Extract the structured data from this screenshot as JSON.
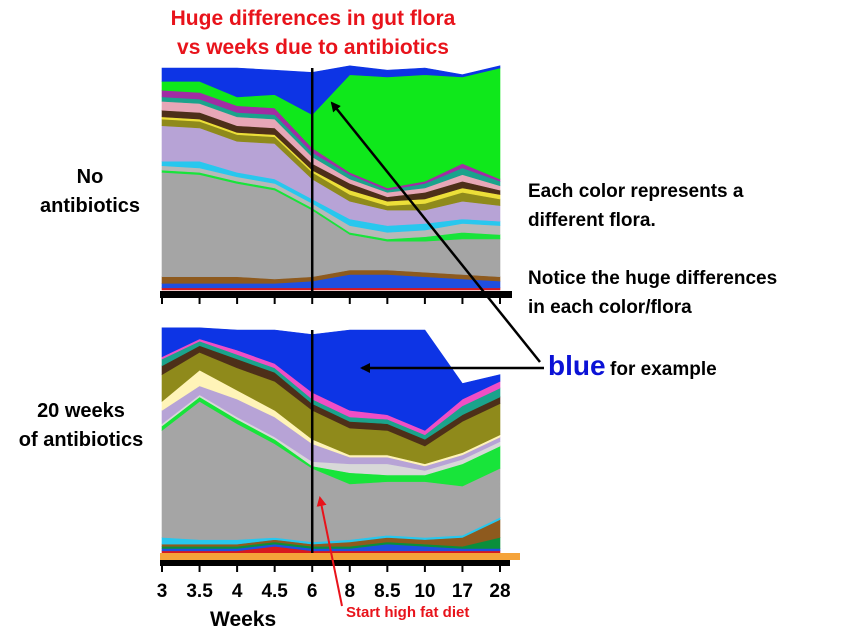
{
  "title_lines": [
    "Huge differences in gut flora",
    "vs weeks due to antibiotics"
  ],
  "notes": {
    "line1a": "Each color represents a",
    "line1b": "different flora.",
    "line2a": "Notice the huge differences",
    "line2b": "in each color/flora",
    "blue_word": "blue",
    "blue_rest": "for example"
  },
  "diet_annotation": "Start high fat diet",
  "colors": {
    "title": "#e8131b",
    "blue_word": "#0b12d6",
    "diet_bar": "#f5a33a"
  },
  "chart_data": [
    {
      "type": "area",
      "panel": "No antibiotics",
      "row_label_lines": [
        "No",
        "antibiotics"
      ],
      "categories": [
        "3",
        "3.5",
        "4",
        "4.5",
        "6",
        "8",
        "8.5",
        "10",
        "17",
        "28"
      ],
      "xlabel": "Weeks",
      "ylabel": "",
      "ylim": [
        0,
        100
      ],
      "marker": {
        "at_category": "6",
        "label": "Start high fat diet"
      },
      "series": [
        {
          "color": "#d8191f",
          "values": [
            1,
            1,
            1,
            1,
            1,
            1,
            1,
            1,
            1,
            1
          ]
        },
        {
          "color": "#1f4fe0",
          "values": [
            2,
            2,
            2,
            2,
            3,
            6,
            6,
            5,
            4,
            3
          ]
        },
        {
          "color": "#8e5a1e",
          "values": [
            3,
            3,
            3,
            2,
            2,
            2,
            2,
            2,
            2,
            2
          ]
        },
        {
          "color": "#a5a5a5",
          "values": [
            47,
            46,
            42,
            40,
            30,
            16,
            13,
            14,
            16,
            17
          ]
        },
        {
          "color": "#18e43a",
          "values": [
            1,
            1,
            1,
            1,
            1,
            1,
            1,
            2,
            3,
            2
          ]
        },
        {
          "color": "#b8b8b8",
          "values": [
            2,
            2,
            2,
            2,
            2,
            3,
            3,
            3,
            4,
            4
          ]
        },
        {
          "color": "#28c7ee",
          "values": [
            2,
            3,
            2,
            2,
            2,
            3,
            3,
            3,
            2,
            2
          ]
        },
        {
          "color": "#b7a3d6",
          "values": [
            16,
            15,
            14,
            16,
            9,
            8,
            7,
            6,
            8,
            7
          ]
        },
        {
          "color": "#8f8a1b",
          "values": [
            3,
            3,
            3,
            3,
            3,
            3,
            2,
            3,
            4,
            3
          ]
        },
        {
          "color": "#ecdf39",
          "values": [
            1,
            1,
            1,
            1,
            1,
            2,
            2,
            2,
            2,
            2
          ]
        },
        {
          "color": "#4d2f19",
          "values": [
            3,
            3,
            3,
            3,
            3,
            3,
            2,
            3,
            3,
            2
          ]
        },
        {
          "color": "#e7a7b7",
          "values": [
            4,
            4,
            4,
            4,
            3,
            2,
            2,
            2,
            3,
            2
          ]
        },
        {
          "color": "#1aa38c",
          "values": [
            2,
            2,
            2,
            2,
            2,
            2,
            1,
            2,
            3,
            2
          ]
        },
        {
          "color": "#a12da3",
          "values": [
            3,
            3,
            3,
            3,
            2,
            1,
            1,
            1,
            2,
            1
          ]
        },
        {
          "color": "#0fe81b",
          "values": [
            4,
            5,
            4,
            6,
            15,
            44,
            50,
            48,
            39,
            50
          ]
        },
        {
          "color": "#0d34e5",
          "values": [
            6,
            6,
            13,
            11,
            19,
            4,
            3,
            3,
            1,
            1
          ]
        }
      ]
    },
    {
      "type": "area",
      "panel": "20 weeks of antibiotics",
      "row_label_lines": [
        "20 weeks",
        "of antibiotics"
      ],
      "categories": [
        "3",
        "3.5",
        "4",
        "4.5",
        "6",
        "8",
        "8.5",
        "10",
        "17",
        "28"
      ],
      "xlabel": "Weeks",
      "ylabel": "",
      "ylim": [
        0,
        100
      ],
      "marker": {
        "at_category": "6",
        "label": "Start high fat diet"
      },
      "series": [
        {
          "color": "#d8191f",
          "values": [
            1,
            1,
            1,
            3,
            1,
            1,
            1,
            1,
            1,
            1
          ]
        },
        {
          "color": "#1f4fe0",
          "values": [
            1,
            1,
            1,
            1,
            1,
            1,
            3,
            2,
            1,
            1
          ]
        },
        {
          "color": "#0a8f3c",
          "values": [
            1,
            1,
            1,
            1,
            1,
            1,
            1,
            1,
            1,
            5
          ]
        },
        {
          "color": "#8e5a1e",
          "values": [
            1,
            1,
            1,
            1,
            1,
            2,
            2,
            2,
            4,
            8
          ]
        },
        {
          "color": "#28c7ee",
          "values": [
            3,
            2,
            2,
            1,
            1,
            1,
            1,
            1,
            1,
            1
          ]
        },
        {
          "color": "#a5a5a5",
          "values": [
            48,
            62,
            52,
            42,
            33,
            25,
            24,
            25,
            22,
            22
          ]
        },
        {
          "color": "#18e43a",
          "values": [
            2,
            2,
            2,
            2,
            1,
            5,
            3,
            3,
            10,
            10
          ]
        },
        {
          "color": "#d8d8d8",
          "values": [
            1,
            1,
            1,
            1,
            2,
            4,
            5,
            2,
            2,
            2
          ]
        },
        {
          "color": "#b7a3d6",
          "values": [
            6,
            4,
            8,
            9,
            8,
            3,
            3,
            2,
            2,
            2
          ]
        },
        {
          "color": "#fff4b8",
          "values": [
            4,
            7,
            4,
            3,
            2,
            1,
            1,
            1,
            1,
            1
          ]
        },
        {
          "color": "#8f8a1b",
          "values": [
            12,
            8,
            10,
            13,
            13,
            12,
            11,
            8,
            14,
            14
          ]
        },
        {
          "color": "#4d2f19",
          "values": [
            4,
            3,
            4,
            4,
            3,
            3,
            3,
            3,
            3,
            3
          ]
        },
        {
          "color": "#1aa38c",
          "values": [
            3,
            2,
            2,
            2,
            2,
            2,
            2,
            2,
            4,
            4
          ]
        },
        {
          "color": "#f04ec5",
          "values": [
            1,
            1,
            2,
            2,
            3,
            3,
            2,
            2,
            3,
            3
          ]
        },
        {
          "color": "#0d34e5",
          "values": [
            13,
            5,
            9,
            15,
            26,
            36,
            38,
            45,
            7,
            3
          ]
        }
      ]
    }
  ]
}
